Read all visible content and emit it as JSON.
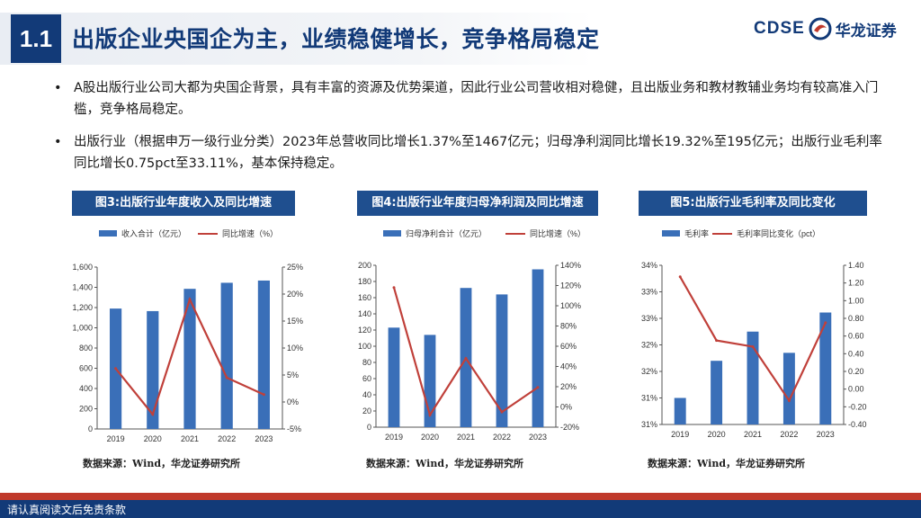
{
  "header": {
    "section_number": "1.1",
    "title": "出版企业央国企为主，业绩稳健增长，竞争格局稳定",
    "logo_text": "CDSE",
    "logo_cn": "华龙证券"
  },
  "bullets": [
    "A股出版行业公司大都为央国企背景，具有丰富的资源及优势渠道，因此行业公司营收相对稳健，且出版业务和教材教辅业务均有较高准入门槛，竞争格局稳定。",
    "出版行业（根据申万一级行业分类）2023年总营收同比增长1.37%至1467亿元；归母净利润同比增长19.32%至195亿元；出版行业毛利率同比增长0.75pct至33.11%，基本保持稳定。"
  ],
  "colors": {
    "bar": "#3a6fb8",
    "line": "#c0403a",
    "navy": "#123a78",
    "title_bg": "#1f4f8f"
  },
  "chart_data": [
    {
      "type": "bar",
      "title": "图3:出版行业年度收入及同比增速",
      "categories": [
        "2019",
        "2020",
        "2021",
        "2022",
        "2023"
      ],
      "series": [
        {
          "name": "收入合计（亿元）",
          "type": "bar",
          "axis": "left",
          "values": [
            1190,
            1165,
            1385,
            1445,
            1467
          ]
        },
        {
          "name": "同比增速（%）",
          "type": "line",
          "axis": "right",
          "values": [
            6.2,
            -2.3,
            19.0,
            4.5,
            1.37
          ]
        }
      ],
      "left_axis": {
        "min": 0,
        "max": 1600,
        "step": 200,
        "ticks": [
          "0",
          "200",
          "400",
          "600",
          "800",
          "1,000",
          "1,200",
          "1,400",
          "1,600"
        ]
      },
      "right_axis": {
        "min": -5,
        "max": 25,
        "step": 5,
        "ticks": [
          "-5%",
          "0%",
          "5%",
          "10%",
          "15%",
          "20%",
          "25%"
        ]
      },
      "source": "数据来源：Wind，华龙证券研究所"
    },
    {
      "type": "bar",
      "title": "图4:出版行业年度归母净利润及同比增速",
      "categories": [
        "2019",
        "2020",
        "2021",
        "2022",
        "2023"
      ],
      "series": [
        {
          "name": "归母净利合计（亿元）",
          "type": "bar",
          "axis": "left",
          "values": [
            123,
            114,
            172,
            164,
            195
          ]
        },
        {
          "name": "同比增速（%）",
          "type": "line",
          "axis": "right",
          "values": [
            118,
            -8,
            48,
            -5,
            19.32
          ]
        }
      ],
      "left_axis": {
        "min": 0,
        "max": 200,
        "step": 20,
        "ticks": [
          "0",
          "20",
          "40",
          "60",
          "80",
          "100",
          "120",
          "140",
          "160",
          "180",
          "200"
        ]
      },
      "right_axis": {
        "min": -20,
        "max": 140,
        "step": 20,
        "ticks": [
          "-20%",
          "0%",
          "20%",
          "40%",
          "60%",
          "80%",
          "100%",
          "120%",
          "140%"
        ]
      },
      "source": "数据来源：Wind，华龙证券研究所"
    },
    {
      "type": "bar",
      "title": "图5:出版行业毛利率及同比变化",
      "categories": [
        "2019",
        "2020",
        "2021",
        "2022",
        "2023"
      ],
      "series": [
        {
          "name": "毛利率",
          "type": "bar",
          "axis": "left",
          "values": [
            31.5,
            32.2,
            32.75,
            32.35,
            33.11
          ]
        },
        {
          "name": "毛利率同比变化（pct）",
          "type": "line",
          "axis": "right",
          "values": [
            1.27,
            0.55,
            0.48,
            -0.13,
            0.75
          ]
        }
      ],
      "left_axis": {
        "min": 31.0,
        "max": 34.0,
        "step": 0.5,
        "ticks": [
          "31%",
          "31%",
          "32%",
          "32%",
          "33%",
          "33%",
          "34%"
        ]
      },
      "right_axis": {
        "min": -0.4,
        "max": 1.4,
        "step": 0.2,
        "ticks": [
          "-0.40",
          "-0.20",
          "0.00",
          "0.20",
          "0.40",
          "0.60",
          "0.80",
          "1.00",
          "1.20",
          "1.40"
        ]
      },
      "source": "数据来源：Wind，华龙证券研究所"
    }
  ],
  "footer": {
    "text": "请认真阅读文后免责条款"
  }
}
